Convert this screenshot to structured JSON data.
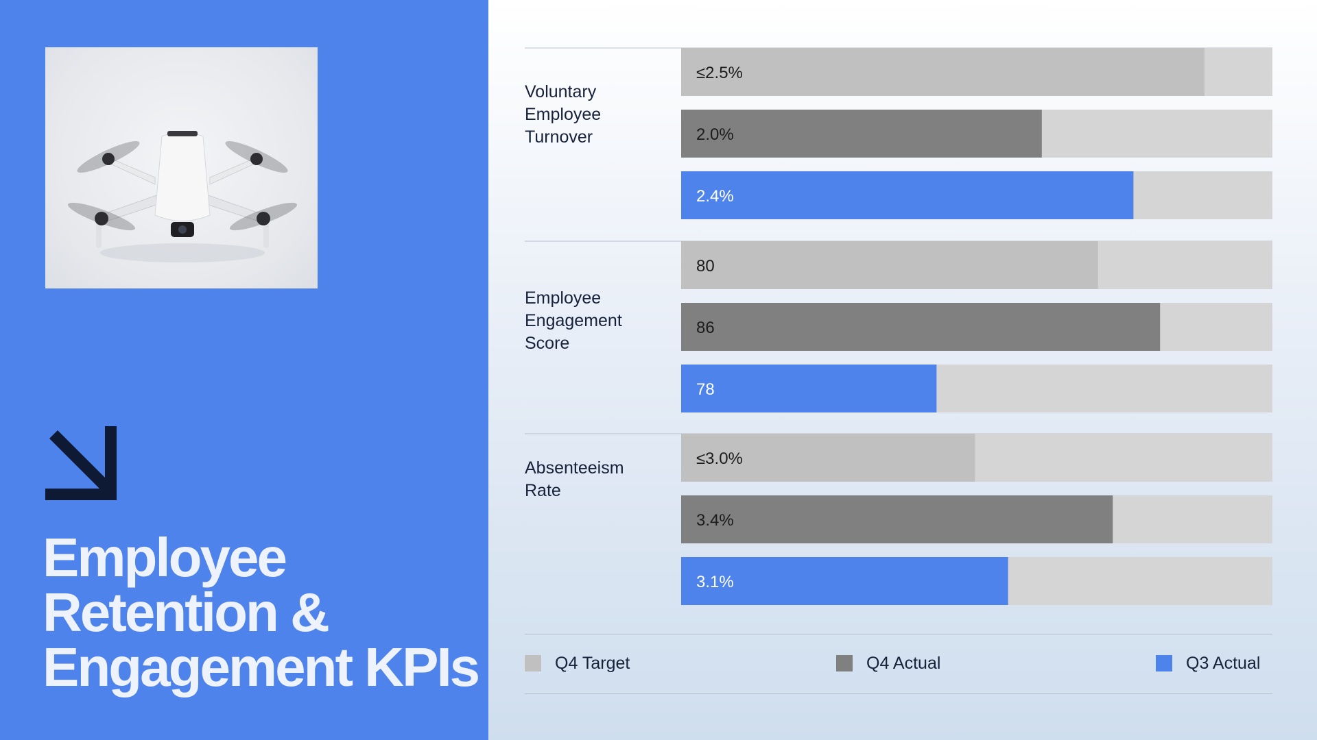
{
  "slide": {
    "title_lines": [
      "Employee",
      "Retention &",
      "Engagement KPIs"
    ],
    "photo_icon": "drone-photo",
    "arrow_icon": "arrow-down-right-icon",
    "colors": {
      "panel_blue": "#4f83ec",
      "title_text": "#eef2fb",
      "navy_arrow": "#0e1a33"
    }
  },
  "chart_data": {
    "type": "bar",
    "orientation": "horizontal",
    "categories": [
      {
        "label_lines": [
          "Voluntary",
          "Employee",
          "Turnover"
        ]
      },
      {
        "label_lines": [
          "Employee",
          "Engagement",
          "Score"
        ]
      },
      {
        "label_lines": [
          "Absenteeism",
          "Rate"
        ]
      }
    ],
    "series": [
      {
        "name": "Q4 Target",
        "color": "#c0c0c0",
        "text_color": "#1c1c1c",
        "fill_fractions": [
          0.885,
          0.705,
          0.497
        ],
        "labels": [
          "≤2.5%",
          "80",
          "≤3.0%"
        ]
      },
      {
        "name": "Q4 Actual",
        "color": "#808080",
        "text_color": "#1c1c1c",
        "fill_fractions": [
          0.61,
          0.81,
          0.73
        ],
        "labels": [
          "2.0%",
          "86",
          "3.4%"
        ]
      },
      {
        "name": "Q3 Actual",
        "color": "#4f83ec",
        "text_color": "#ffffff",
        "fill_fractions": [
          0.765,
          0.432,
          0.553
        ],
        "labels": [
          "2.4%",
          "78",
          "3.1%"
        ]
      }
    ],
    "track_color": "#d5d5d5",
    "divider_color": "#b8c0cc",
    "legend": {
      "placement": "bottom",
      "items": [
        {
          "label": "Q4 Target",
          "color": "#c0c0c0"
        },
        {
          "label": "Q4 Actual",
          "color": "#808080"
        },
        {
          "label": "Q3 Actual",
          "color": "#4f83ec"
        }
      ]
    },
    "grid": false
  }
}
